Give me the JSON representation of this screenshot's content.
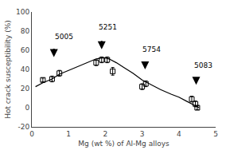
{
  "chart_data": {
    "type": "line",
    "xlabel": "Mg (wt %) of Al-Mg alloys",
    "ylabel": "Hot crack susceptibility (%)",
    "xlim": [
      0,
      5
    ],
    "ylim": [
      -20,
      100
    ],
    "xticks": [
      0,
      1,
      2,
      3,
      4,
      5
    ],
    "yticks": [
      -20,
      0,
      20,
      40,
      60,
      80,
      100
    ],
    "grid": false,
    "series": [
      {
        "type": "line",
        "color": "#000000",
        "line_style": "solid",
        "x": [
          0.1,
          0.3,
          0.55,
          0.75,
          1.0,
          1.25,
          1.5,
          1.75,
          1.9,
          2.0,
          2.1,
          2.3,
          2.5,
          2.75,
          3.0,
          3.25,
          3.5,
          3.8,
          4.0,
          4.2,
          4.4,
          4.55
        ],
        "values": [
          22,
          26,
          30,
          35,
          39,
          43,
          47,
          51,
          52,
          52,
          51,
          47,
          42,
          36,
          29,
          24,
          19,
          14,
          11,
          7,
          3,
          0
        ]
      },
      {
        "type": "scatter",
        "marker": "square-open",
        "color": "#000000",
        "x": [
          0.3,
          0.55,
          0.75
        ],
        "values": [
          29,
          30,
          36
        ],
        "errors": [
          2,
          3,
          3
        ]
      },
      {
        "type": "scatter",
        "marker": "square-open",
        "color": "#000000",
        "x": [
          1.75,
          1.9,
          2.05,
          2.2
        ],
        "values": [
          47,
          50,
          50,
          38
        ],
        "errors": [
          3,
          3,
          3,
          4
        ]
      },
      {
        "type": "scatter",
        "marker": "square-open",
        "color": "#000000",
        "x": [
          3.0,
          3.1
        ],
        "values": [
          22,
          25
        ],
        "errors": [
          3,
          3
        ]
      },
      {
        "type": "scatter",
        "marker": "square-open",
        "color": "#000000",
        "x": [
          4.35,
          4.45,
          4.5
        ],
        "values": [
          9,
          4,
          0
        ],
        "errors": [
          3,
          3,
          2
        ]
      }
    ],
    "annotations": [
      {
        "text": "5005",
        "x": 0.58,
        "y": 68,
        "arrow_from": [
          0.6,
          63
        ],
        "arrow_to": [
          0.6,
          53
        ]
      },
      {
        "text": "5251",
        "x": 1.78,
        "y": 78,
        "arrow_from": [
          1.9,
          71
        ],
        "arrow_to": [
          1.9,
          61
        ]
      },
      {
        "text": "5754",
        "x": 2.97,
        "y": 55,
        "arrow_from": [
          3.08,
          49
        ],
        "arrow_to": [
          3.08,
          40
        ]
      },
      {
        "text": "5083",
        "x": 4.38,
        "y": 38,
        "arrow_from": [
          4.47,
          33
        ],
        "arrow_to": [
          4.47,
          24
        ]
      }
    ]
  }
}
